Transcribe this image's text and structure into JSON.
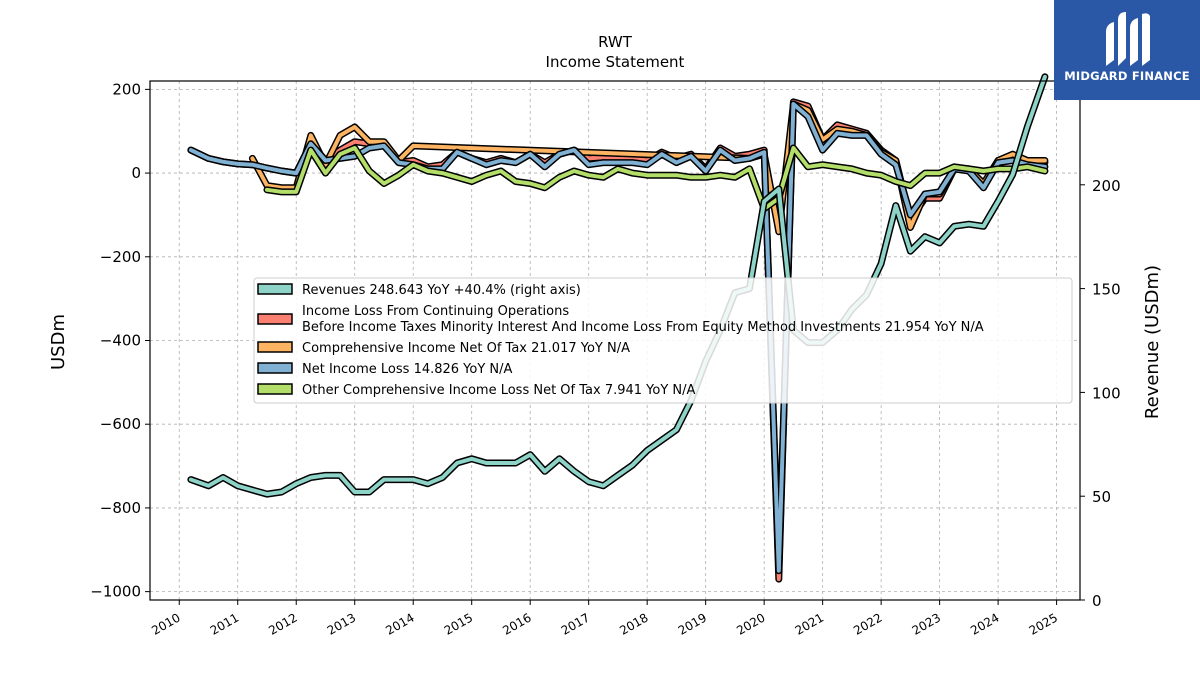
{
  "chart_data": {
    "type": "line",
    "title": "RWT",
    "subtitle": "Income Statement",
    "ylabel": "USDm",
    "ylabel_right": "Revenue (USDm)",
    "ylim": [
      -1020,
      220
    ],
    "ylim_right": [
      0,
      250
    ],
    "xlim": [
      2009.5,
      2025.4
    ],
    "yticks": [
      200,
      0,
      -200,
      -400,
      -600,
      -800,
      -1000
    ],
    "ytick_labels": [
      "200",
      "0",
      "−200",
      "−400",
      "−600",
      "−800",
      "−1000"
    ],
    "yticks_right": [
      0,
      50,
      100,
      150,
      200,
      250
    ],
    "ytick_labels_right": [
      "0",
      "50",
      "100",
      "150",
      "200",
      "250"
    ],
    "xticks": [
      2010,
      2011,
      2012,
      2013,
      2014,
      2015,
      2016,
      2017,
      2018,
      2019,
      2020,
      2021,
      2022,
      2023,
      2024,
      2025
    ],
    "xtick_labels": [
      "2010",
      "2011",
      "2012",
      "2013",
      "2014",
      "2015",
      "2016",
      "2017",
      "2018",
      "2019",
      "2020",
      "2021",
      "2022",
      "2023",
      "2024",
      "2025"
    ],
    "grid": true,
    "legend_position": "center",
    "series": [
      {
        "name": "Revenues  248.643 YoY +40.4% (right axis)",
        "color": "#8dd3c7",
        "axis": "right",
        "x": [
          2010.2,
          2010.5,
          2010.75,
          2011.0,
          2011.25,
          2011.5,
          2011.75,
          2012.0,
          2012.25,
          2012.5,
          2012.75,
          2013.0,
          2013.25,
          2013.5,
          2013.75,
          2014.0,
          2014.25,
          2014.5,
          2014.75,
          2015.0,
          2015.25,
          2015.5,
          2015.75,
          2016.0,
          2016.25,
          2016.5,
          2016.75,
          2017.0,
          2017.25,
          2017.5,
          2017.75,
          2018.0,
          2018.25,
          2018.5,
          2018.75,
          2019.0,
          2019.25,
          2019.5,
          2019.75,
          2020.0,
          2020.25,
          2020.5,
          2020.75,
          2021.0,
          2021.25,
          2021.5,
          2021.75,
          2022.0,
          2022.25,
          2022.5,
          2022.75,
          2023.0,
          2023.25,
          2023.5,
          2023.75,
          2024.0,
          2024.25,
          2024.5,
          2024.8
        ],
        "values": [
          58,
          55,
          59,
          55,
          53,
          51,
          52,
          56,
          59,
          60,
          60,
          52,
          52,
          58,
          58,
          58,
          56,
          59,
          66,
          68,
          66,
          66,
          66,
          70,
          62,
          68,
          62,
          57,
          55,
          60,
          65,
          72,
          77,
          82,
          96,
          115,
          130,
          148,
          150,
          192,
          198,
          130,
          124,
          124,
          130,
          140,
          147,
          162,
          190,
          168,
          175,
          172,
          180,
          181,
          180,
          192,
          205,
          228,
          252
        ]
      },
      {
        "name": "Income Loss From Continuing Operations\nBefore Income Taxes Minority Interest And Income Loss From Equity Method Investments  21.954 YoY N/A",
        "color": "#fb8072",
        "axis": "left",
        "x": [
          2010.2,
          2010.5,
          2010.75,
          2011.0,
          2011.25,
          2011.5,
          2011.75,
          2012.0,
          2012.25,
          2012.5,
          2012.75,
          2013.0,
          2013.25,
          2013.5,
          2013.75,
          2014.0,
          2014.25,
          2014.5,
          2014.75,
          2015.0,
          2015.25,
          2015.5,
          2015.75,
          2016.0,
          2016.25,
          2016.5,
          2016.75,
          2017.0,
          2017.25,
          2017.5,
          2017.75,
          2018.0,
          2018.25,
          2018.5,
          2018.75,
          2019.0,
          2019.25,
          2019.5,
          2019.75,
          2020.0,
          2020.25,
          2020.5,
          2020.75,
          2021.0,
          2021.25,
          2021.5,
          2021.75,
          2022.0,
          2022.25,
          2022.5,
          2022.75,
          2023.0,
          2023.25,
          2023.5,
          2023.75,
          2024.0,
          2024.25,
          2024.5,
          2024.8
        ],
        "values": [
          55,
          35,
          27,
          22,
          20,
          12,
          5,
          0,
          70,
          30,
          55,
          75,
          70,
          72,
          25,
          30,
          15,
          20,
          50,
          35,
          25,
          35,
          25,
          45,
          25,
          45,
          55,
          35,
          38,
          35,
          35,
          30,
          50,
          35,
          45,
          10,
          60,
          40,
          45,
          55,
          -970,
          170,
          160,
          80,
          115,
          105,
          95,
          55,
          30,
          -110,
          -60,
          -60,
          10,
          10,
          -30,
          30,
          40,
          25,
          25
        ]
      },
      {
        "name": "Comprehensive Income Net Of Tax  21.017 YoY N/A",
        "color": "#fdb462",
        "axis": "left",
        "x": [
          2011.25,
          2011.5,
          2011.75,
          2012.0,
          2012.25,
          2012.5,
          2012.75,
          2013.0,
          2013.25,
          2013.5,
          2013.75,
          2014.0,
          2019.75,
          2020.0,
          2020.25,
          2020.5,
          2020.75,
          2021.0,
          2021.25,
          2021.5,
          2021.75,
          2022.0,
          2022.25,
          2022.5,
          2022.75,
          2023.0,
          2023.25,
          2023.5,
          2023.75,
          2024.0,
          2024.25,
          2024.5,
          2024.8
        ],
        "values": [
          35,
          -30,
          -35,
          -35,
          90,
          20,
          90,
          110,
          75,
          75,
          30,
          65,
          35,
          45,
          -140,
          165,
          150,
          80,
          105,
          100,
          90,
          50,
          30,
          -130,
          -50,
          -50,
          10,
          10,
          -25,
          30,
          45,
          30,
          30
        ]
      },
      {
        "name": "Net Income Loss  14.826 YoY N/A",
        "color": "#80b1d3",
        "axis": "left",
        "x": [
          2010.2,
          2010.5,
          2010.75,
          2011.0,
          2011.25,
          2011.5,
          2011.75,
          2012.0,
          2012.25,
          2012.5,
          2012.75,
          2013.0,
          2013.25,
          2013.5,
          2013.75,
          2014.0,
          2014.25,
          2014.5,
          2014.75,
          2015.0,
          2015.25,
          2015.5,
          2015.75,
          2016.0,
          2016.25,
          2016.5,
          2016.75,
          2017.0,
          2017.25,
          2017.5,
          2017.75,
          2018.0,
          2018.25,
          2018.5,
          2018.75,
          2019.0,
          2019.25,
          2019.5,
          2019.75,
          2020.0,
          2020.25,
          2020.5,
          2020.75,
          2021.0,
          2021.25,
          2021.5,
          2021.75,
          2022.0,
          2022.25,
          2022.5,
          2022.75,
          2023.0,
          2023.25,
          2023.5,
          2023.75,
          2024.0,
          2024.25,
          2024.5,
          2024.8
        ],
        "values": [
          55,
          35,
          27,
          22,
          20,
          12,
          5,
          0,
          70,
          30,
          35,
          40,
          60,
          65,
          25,
          20,
          10,
          10,
          50,
          35,
          20,
          30,
          25,
          45,
          15,
          45,
          55,
          20,
          25,
          25,
          25,
          20,
          45,
          25,
          40,
          5,
          55,
          30,
          35,
          50,
          -950,
          165,
          135,
          55,
          95,
          90,
          90,
          45,
          20,
          -100,
          -50,
          -45,
          10,
          5,
          -35,
          25,
          30,
          20,
          15
        ]
      },
      {
        "name": "Other Comprehensive Income Loss Net Of Tax  7.941 YoY N/A",
        "color": "#b3de69",
        "axis": "left",
        "x": [
          2011.5,
          2011.75,
          2012.0,
          2012.25,
          2012.5,
          2012.75,
          2013.0,
          2013.25,
          2013.5,
          2013.75,
          2014.0,
          2014.25,
          2014.5,
          2014.75,
          2015.0,
          2015.25,
          2015.5,
          2015.75,
          2016.0,
          2016.25,
          2016.5,
          2016.75,
          2017.0,
          2017.25,
          2017.5,
          2017.75,
          2018.0,
          2018.25,
          2018.5,
          2018.75,
          2019.0,
          2019.25,
          2019.5,
          2019.75,
          2020.0,
          2020.25,
          2020.5,
          2020.75,
          2021.0,
          2021.25,
          2021.5,
          2021.75,
          2022.0,
          2022.25,
          2022.5,
          2022.75,
          2023.0,
          2023.25,
          2023.5,
          2023.75,
          2024.0,
          2024.25,
          2024.5,
          2024.8
        ],
        "values": [
          -40,
          -45,
          -45,
          55,
          0,
          45,
          60,
          5,
          -25,
          -5,
          20,
          5,
          0,
          -10,
          -20,
          -5,
          5,
          -20,
          -25,
          -35,
          -10,
          5,
          -5,
          -10,
          10,
          0,
          -5,
          -5,
          -5,
          -10,
          -10,
          -5,
          -10,
          10,
          -85,
          -60,
          60,
          15,
          20,
          15,
          10,
          0,
          -5,
          -20,
          -30,
          0,
          0,
          15,
          10,
          5,
          10,
          10,
          15,
          5
        ]
      }
    ]
  },
  "watermark": {
    "text": "MIDGARD FINANCE",
    "background": "#2b57a7"
  }
}
